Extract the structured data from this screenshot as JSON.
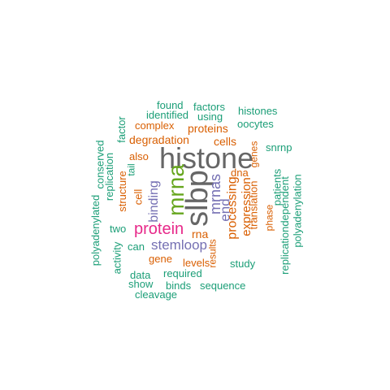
{
  "colors": {
    "teal": "#1b9e77",
    "orange": "#d95f02",
    "purple": "#7570b3",
    "magenta": "#e7298a",
    "green": "#66a61e",
    "gray": "#666666"
  },
  "words": [
    {
      "text": "histone",
      "color": "gray"
    },
    {
      "text": "slbp",
      "color": "gray"
    },
    {
      "text": "mrna",
      "color": "green"
    },
    {
      "text": "protein",
      "color": "magenta"
    },
    {
      "text": "mrnas",
      "color": "purple"
    },
    {
      "text": "binding",
      "color": "purple"
    },
    {
      "text": "stemloop",
      "color": "purple"
    },
    {
      "text": "end",
      "color": "purple"
    },
    {
      "text": "processing",
      "color": "orange"
    },
    {
      "text": "degradation",
      "color": "orange"
    },
    {
      "text": "proteins",
      "color": "orange"
    },
    {
      "text": "expression",
      "color": "orange"
    },
    {
      "text": "rna",
      "color": "orange"
    },
    {
      "text": "cells",
      "color": "orange"
    },
    {
      "text": "complex",
      "color": "orange"
    },
    {
      "text": "dna",
      "color": "orange"
    },
    {
      "text": "gene",
      "color": "orange"
    },
    {
      "text": "levels",
      "color": "orange"
    },
    {
      "text": "cell",
      "color": "orange"
    },
    {
      "text": "also",
      "color": "orange"
    },
    {
      "text": "structure",
      "color": "orange"
    },
    {
      "text": "translation",
      "color": "orange"
    },
    {
      "text": "results",
      "color": "orange"
    },
    {
      "text": "genes",
      "color": "orange"
    },
    {
      "text": "phase",
      "color": "orange"
    },
    {
      "text": "found",
      "color": "teal"
    },
    {
      "text": "factors",
      "color": "teal"
    },
    {
      "text": "identified",
      "color": "teal"
    },
    {
      "text": "using",
      "color": "teal"
    },
    {
      "text": "histones",
      "color": "teal"
    },
    {
      "text": "oocytes",
      "color": "teal"
    },
    {
      "text": "factor",
      "color": "teal"
    },
    {
      "text": "conserved",
      "color": "teal"
    },
    {
      "text": "replication",
      "color": "teal"
    },
    {
      "text": "tail",
      "color": "teal"
    },
    {
      "text": "snrnp",
      "color": "teal"
    },
    {
      "text": "patients",
      "color": "teal"
    },
    {
      "text": "polyadenylated",
      "color": "teal"
    },
    {
      "text": "two",
      "color": "teal"
    },
    {
      "text": "can",
      "color": "teal"
    },
    {
      "text": "activity",
      "color": "teal"
    },
    {
      "text": "data",
      "color": "teal"
    },
    {
      "text": "show",
      "color": "teal"
    },
    {
      "text": "required",
      "color": "teal"
    },
    {
      "text": "binds",
      "color": "teal"
    },
    {
      "text": "sequence",
      "color": "teal"
    },
    {
      "text": "cleavage",
      "color": "teal"
    },
    {
      "text": "study",
      "color": "teal"
    },
    {
      "text": "replicationdependent",
      "color": "teal"
    },
    {
      "text": "polyadenylation",
      "color": "teal"
    }
  ]
}
